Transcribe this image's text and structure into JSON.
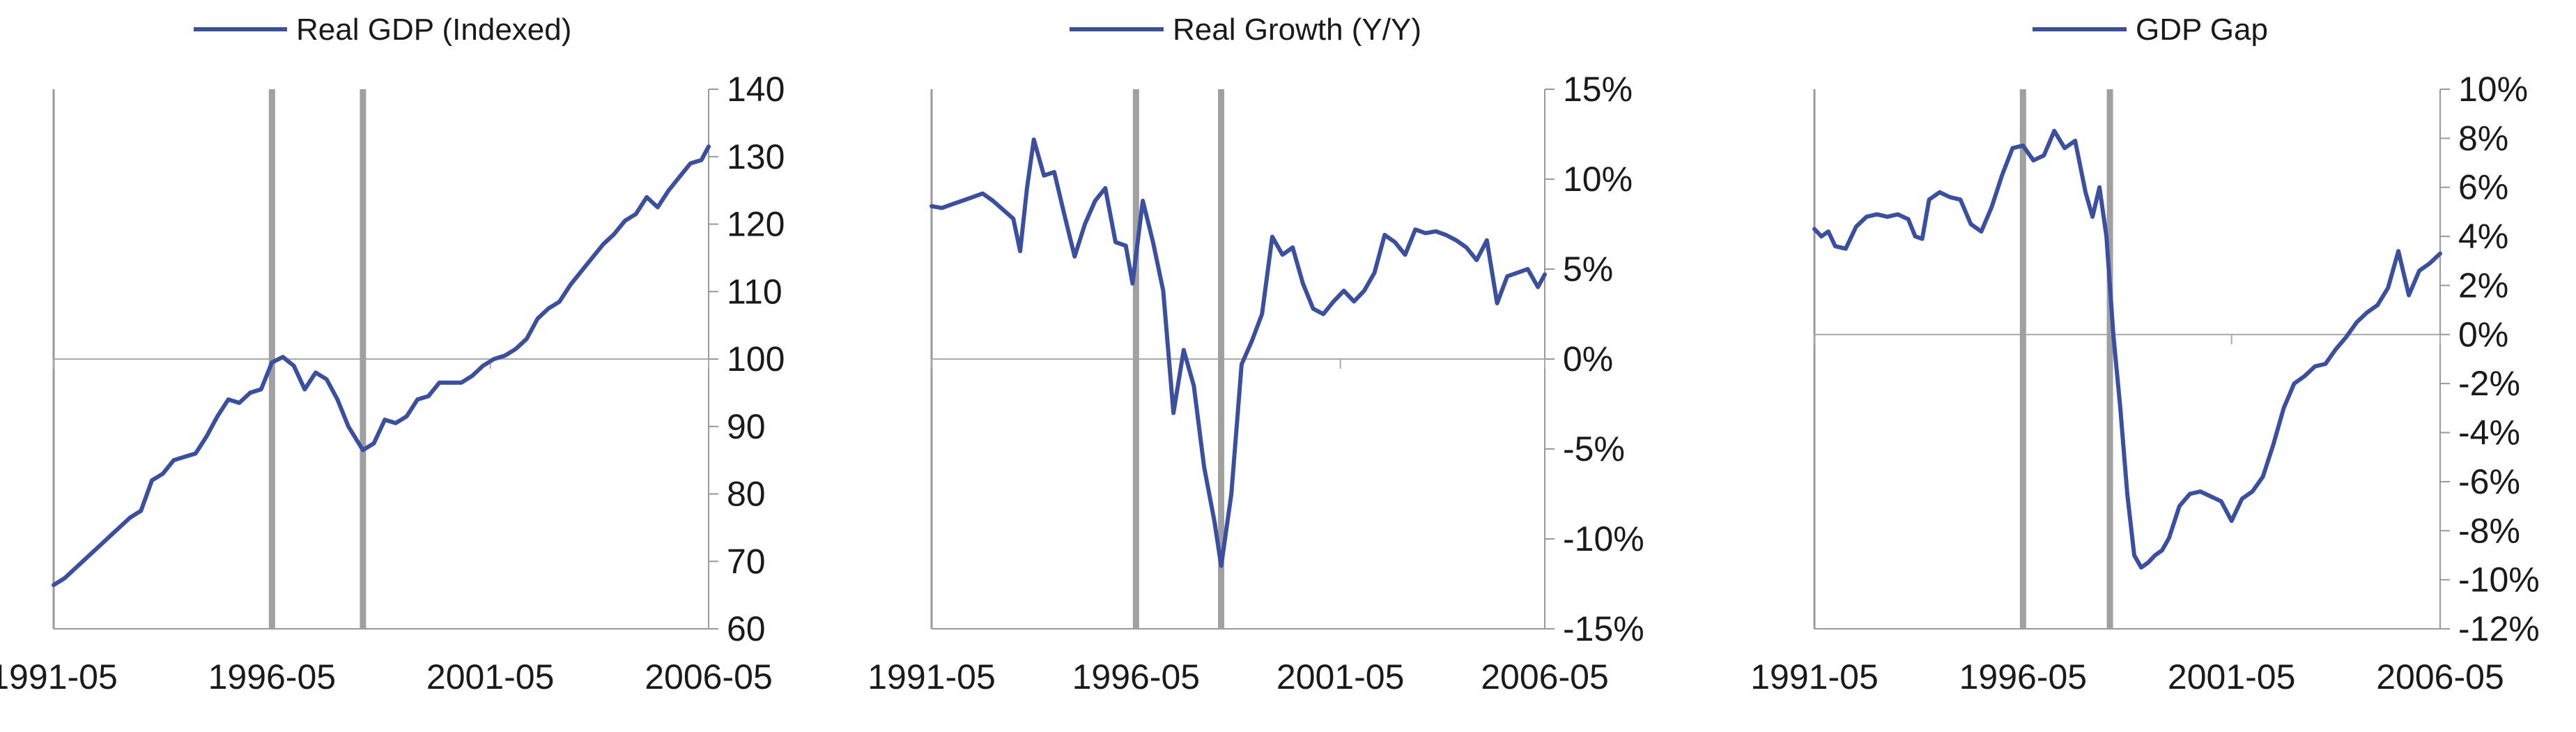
{
  "chart_data": [
    {
      "type": "line",
      "title": "",
      "xlabel": "",
      "ylabel": "",
      "legend": {
        "position": "top",
        "entries": [
          "Real GDP (Indexed)"
        ]
      },
      "x_range": [
        "1991-05",
        "2006-05"
      ],
      "x_ticks": [
        "1991-05",
        "1996-05",
        "2001-05",
        "2006-05"
      ],
      "ylim": [
        60,
        140
      ],
      "y_ticks": [
        60,
        70,
        80,
        90,
        100,
        110,
        120,
        130,
        140
      ],
      "y_tick_labels": [
        "60",
        "70",
        "80",
        "90",
        "100",
        "110",
        "120",
        "130",
        "140"
      ],
      "y_axis_side": "right",
      "reference_line_y": 100,
      "markers_x": [
        "1996-05",
        "1998-06"
      ],
      "series": [
        {
          "name": "Real GDP (Indexed)",
          "color": "#3b4fa0",
          "points": [
            [
              "1991-05",
              66.5
            ],
            [
              "1991-08",
              67.5
            ],
            [
              "1991-11",
              69.0
            ],
            [
              "1992-02",
              70.5
            ],
            [
              "1992-05",
              72.0
            ],
            [
              "1992-08",
              73.5
            ],
            [
              "1992-11",
              75.0
            ],
            [
              "1993-02",
              76.5
            ],
            [
              "1993-05",
              77.5
            ],
            [
              "1993-08",
              82.0
            ],
            [
              "1993-11",
              83.0
            ],
            [
              "1994-02",
              85.0
            ],
            [
              "1994-05",
              85.5
            ],
            [
              "1994-08",
              86.0
            ],
            [
              "1994-11",
              88.5
            ],
            [
              "1995-02",
              91.5
            ],
            [
              "1995-05",
              94.0
            ],
            [
              "1995-08",
              93.5
            ],
            [
              "1995-11",
              95.0
            ],
            [
              "1996-02",
              95.5
            ],
            [
              "1996-05",
              99.5
            ],
            [
              "1996-08",
              100.3
            ],
            [
              "1996-11",
              99.0
            ],
            [
              "1997-02",
              95.5
            ],
            [
              "1997-05",
              98.0
            ],
            [
              "1997-08",
              97.0
            ],
            [
              "1997-11",
              94.0
            ],
            [
              "1998-02",
              90.0
            ],
            [
              "1998-06",
              86.5
            ],
            [
              "1998-09",
              87.5
            ],
            [
              "1998-12",
              91.0
            ],
            [
              "1999-03",
              90.5
            ],
            [
              "1999-06",
              91.5
            ],
            [
              "1999-09",
              94.0
            ],
            [
              "1999-12",
              94.5
            ],
            [
              "2000-03",
              96.5
            ],
            [
              "2000-06",
              96.5
            ],
            [
              "2000-09",
              96.5
            ],
            [
              "2000-12",
              97.5
            ],
            [
              "2001-03",
              99.0
            ],
            [
              "2001-06",
              100.0
            ],
            [
              "2001-09",
              100.5
            ],
            [
              "2001-12",
              101.5
            ],
            [
              "2002-03",
              103.0
            ],
            [
              "2002-06",
              106.0
            ],
            [
              "2002-09",
              107.5
            ],
            [
              "2002-12",
              108.5
            ],
            [
              "2003-03",
              111.0
            ],
            [
              "2003-06",
              113.0
            ],
            [
              "2003-09",
              115.0
            ],
            [
              "2003-12",
              117.0
            ],
            [
              "2004-03",
              118.5
            ],
            [
              "2004-06",
              120.5
            ],
            [
              "2004-09",
              121.5
            ],
            [
              "2004-12",
              124.0
            ],
            [
              "2005-03",
              122.5
            ],
            [
              "2005-06",
              125.0
            ],
            [
              "2005-09",
              127.0
            ],
            [
              "2005-12",
              129.0
            ],
            [
              "2006-03",
              129.5
            ],
            [
              "2006-05",
              131.5
            ]
          ]
        }
      ]
    },
    {
      "type": "line",
      "title": "",
      "xlabel": "",
      "ylabel": "",
      "legend": {
        "position": "top",
        "entries": [
          "Real Growth (Y/Y)"
        ]
      },
      "x_range": [
        "1991-05",
        "2006-05"
      ],
      "x_ticks": [
        "1991-05",
        "1996-05",
        "2001-05",
        "2006-05"
      ],
      "ylim": [
        -15,
        15
      ],
      "y_ticks": [
        -15,
        -10,
        -5,
        0,
        5,
        10,
        15
      ],
      "y_tick_labels": [
        "-15%",
        "-10%",
        "-5%",
        "0%",
        "5%",
        "10%",
        "15%"
      ],
      "y_axis_side": "right",
      "reference_line_y": 0,
      "markers_x": [
        "1996-05",
        "1998-06"
      ],
      "series": [
        {
          "name": "Real Growth (Y/Y)",
          "color": "#3b4fa0",
          "points": [
            [
              "1991-05",
              8.5
            ],
            [
              "1991-08",
              8.4
            ],
            [
              "1991-11",
              8.6
            ],
            [
              "1992-02",
              8.8
            ],
            [
              "1992-05",
              9.0
            ],
            [
              "1992-08",
              9.2
            ],
            [
              "1992-11",
              8.8
            ],
            [
              "1993-02",
              8.3
            ],
            [
              "1993-05",
              7.8
            ],
            [
              "1993-07",
              6.0
            ],
            [
              "1993-09",
              9.5
            ],
            [
              "1993-11",
              12.2
            ],
            [
              "1994-02",
              10.2
            ],
            [
              "1994-05",
              10.4
            ],
            [
              "1994-08",
              8.0
            ],
            [
              "1994-11",
              5.7
            ],
            [
              "1995-02",
              7.5
            ],
            [
              "1995-05",
              8.8
            ],
            [
              "1995-08",
              9.5
            ],
            [
              "1995-11",
              6.5
            ],
            [
              "1996-02",
              6.3
            ],
            [
              "1996-04",
              4.2
            ],
            [
              "1996-07",
              8.8
            ],
            [
              "1996-10",
              6.5
            ],
            [
              "1997-01",
              3.8
            ],
            [
              "1997-04",
              -3.0
            ],
            [
              "1997-07",
              0.5
            ],
            [
              "1997-10",
              -1.5
            ],
            [
              "1998-01",
              -6.0
            ],
            [
              "1998-04",
              -9.0
            ],
            [
              "1998-06",
              -11.5
            ],
            [
              "1998-09",
              -7.5
            ],
            [
              "1998-12",
              -0.3
            ],
            [
              "1999-03",
              1.0
            ],
            [
              "1999-06",
              2.5
            ],
            [
              "1999-09",
              6.8
            ],
            [
              "1999-12",
              5.8
            ],
            [
              "2000-03",
              6.2
            ],
            [
              "2000-06",
              4.2
            ],
            [
              "2000-09",
              2.8
            ],
            [
              "2000-12",
              2.5
            ],
            [
              "2001-03",
              3.2
            ],
            [
              "2001-06",
              3.8
            ],
            [
              "2001-09",
              3.2
            ],
            [
              "2001-12",
              3.8
            ],
            [
              "2002-03",
              4.8
            ],
            [
              "2002-06",
              6.9
            ],
            [
              "2002-09",
              6.5
            ],
            [
              "2002-12",
              5.8
            ],
            [
              "2003-03",
              7.2
            ],
            [
              "2003-06",
              7.0
            ],
            [
              "2003-09",
              7.1
            ],
            [
              "2003-12",
              6.9
            ],
            [
              "2004-03",
              6.6
            ],
            [
              "2004-06",
              6.2
            ],
            [
              "2004-09",
              5.5
            ],
            [
              "2004-12",
              6.6
            ],
            [
              "2005-03",
              3.1
            ],
            [
              "2005-06",
              4.6
            ],
            [
              "2005-09",
              4.8
            ],
            [
              "2005-12",
              5.0
            ],
            [
              "2006-03",
              4.0
            ],
            [
              "2006-05",
              4.7
            ]
          ]
        }
      ]
    },
    {
      "type": "line",
      "title": "",
      "xlabel": "",
      "ylabel": "",
      "legend": {
        "position": "top",
        "entries": [
          "GDP Gap"
        ]
      },
      "x_range": [
        "1991-05",
        "2006-05"
      ],
      "x_ticks": [
        "1991-05",
        "1996-05",
        "2001-05",
        "2006-05"
      ],
      "ylim": [
        -12,
        10
      ],
      "y_ticks": [
        -12,
        -10,
        -8,
        -6,
        -4,
        -2,
        0,
        2,
        4,
        6,
        8,
        10
      ],
      "y_tick_labels": [
        "-12%",
        "-10%",
        "-8%",
        "-6%",
        "-4%",
        "-2%",
        "0%",
        "2%",
        "4%",
        "6%",
        "8%",
        "10%"
      ],
      "y_axis_side": "right",
      "reference_line_y": 0,
      "markers_x": [
        "1996-05",
        "1998-06"
      ],
      "series": [
        {
          "name": "GDP Gap",
          "color": "#3b4fa0",
          "points": [
            [
              "1991-05",
              4.3
            ],
            [
              "1991-07",
              4.0
            ],
            [
              "1991-09",
              4.2
            ],
            [
              "1991-11",
              3.6
            ],
            [
              "1992-02",
              3.5
            ],
            [
              "1992-05",
              4.4
            ],
            [
              "1992-08",
              4.8
            ],
            [
              "1992-11",
              4.9
            ],
            [
              "1993-02",
              4.8
            ],
            [
              "1993-05",
              4.9
            ],
            [
              "1993-08",
              4.7
            ],
            [
              "1993-10",
              4.0
            ],
            [
              "1993-12",
              3.9
            ],
            [
              "1994-02",
              5.5
            ],
            [
              "1994-05",
              5.8
            ],
            [
              "1994-08",
              5.6
            ],
            [
              "1994-11",
              5.5
            ],
            [
              "1995-02",
              4.5
            ],
            [
              "1995-05",
              4.2
            ],
            [
              "1995-08",
              5.2
            ],
            [
              "1995-11",
              6.5
            ],
            [
              "1996-02",
              7.6
            ],
            [
              "1996-05",
              7.7
            ],
            [
              "1996-08",
              7.1
            ],
            [
              "1996-11",
              7.3
            ],
            [
              "1997-02",
              8.3
            ],
            [
              "1997-05",
              7.6
            ],
            [
              "1997-08",
              7.9
            ],
            [
              "1997-11",
              5.8
            ],
            [
              "1998-01",
              4.8
            ],
            [
              "1998-03",
              6.0
            ],
            [
              "1998-05",
              4.0
            ],
            [
              "1998-07",
              0.0
            ],
            [
              "1998-09",
              -3.0
            ],
            [
              "1998-11",
              -6.5
            ],
            [
              "1999-01",
              -9.0
            ],
            [
              "1999-03",
              -9.5
            ],
            [
              "1999-05",
              -9.3
            ],
            [
              "1999-07",
              -9.0
            ],
            [
              "1999-09",
              -8.8
            ],
            [
              "1999-11",
              -8.3
            ],
            [
              "2000-02",
              -7.0
            ],
            [
              "2000-05",
              -6.5
            ],
            [
              "2000-08",
              -6.4
            ],
            [
              "2000-11",
              -6.6
            ],
            [
              "2001-02",
              -6.8
            ],
            [
              "2001-05",
              -7.6
            ],
            [
              "2001-08",
              -6.7
            ],
            [
              "2001-11",
              -6.4
            ],
            [
              "2002-02",
              -5.8
            ],
            [
              "2002-05",
              -4.5
            ],
            [
              "2002-08",
              -3.0
            ],
            [
              "2002-11",
              -2.0
            ],
            [
              "2003-02",
              -1.7
            ],
            [
              "2003-05",
              -1.3
            ],
            [
              "2003-08",
              -1.2
            ],
            [
              "2003-11",
              -0.6
            ],
            [
              "2004-02",
              -0.1
            ],
            [
              "2004-05",
              0.5
            ],
            [
              "2004-08",
              0.9
            ],
            [
              "2004-11",
              1.2
            ],
            [
              "2005-02",
              1.9
            ],
            [
              "2005-05",
              3.4
            ],
            [
              "2005-08",
              1.6
            ],
            [
              "2005-11",
              2.6
            ],
            [
              "2006-02",
              2.9
            ],
            [
              "2006-05",
              3.3
            ]
          ]
        }
      ]
    }
  ]
}
